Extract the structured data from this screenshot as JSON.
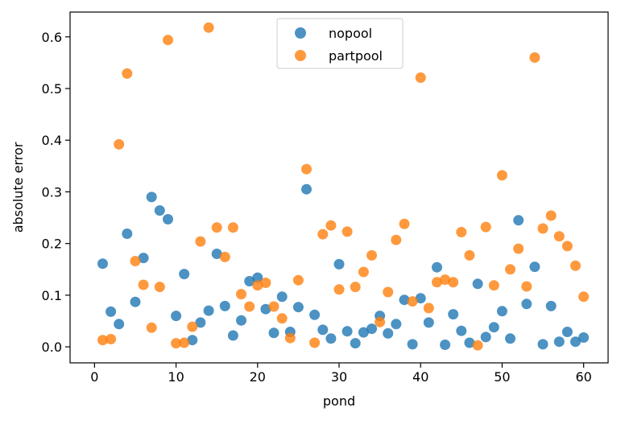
{
  "chart_data": {
    "type": "scatter",
    "xlabel": "pond",
    "ylabel": "absolute error",
    "xlim": [
      -3,
      63
    ],
    "ylim": [
      -0.031,
      0.648
    ],
    "xticks": [
      0,
      10,
      20,
      30,
      40,
      50,
      60
    ],
    "yticks": [
      0.0,
      0.1,
      0.2,
      0.3,
      0.4,
      0.5,
      0.6
    ],
    "xtick_labels": [
      "0",
      "10",
      "20",
      "30",
      "40",
      "50",
      "60"
    ],
    "ytick_labels": [
      "0.0",
      "0.1",
      "0.2",
      "0.3",
      "0.4",
      "0.5",
      "0.6"
    ],
    "grid": false,
    "legend_placement": "upper center",
    "series": [
      {
        "name": "nopool",
        "color": "#1f77b4",
        "x": [
          1,
          2,
          3,
          4,
          5,
          6,
          7,
          8,
          9,
          10,
          11,
          12,
          13,
          14,
          15,
          16,
          17,
          18,
          19,
          20,
          21,
          22,
          23,
          24,
          25,
          26,
          27,
          28,
          29,
          30,
          31,
          32,
          33,
          34,
          35,
          36,
          37,
          38,
          39,
          40,
          41,
          42,
          43,
          44,
          45,
          46,
          47,
          48,
          49,
          50,
          51,
          52,
          53,
          54,
          55,
          56,
          57,
          58,
          59,
          60
        ],
        "y": [
          0.161,
          0.068,
          0.044,
          0.219,
          0.087,
          0.172,
          0.29,
          0.264,
          0.247,
          0.06,
          0.141,
          0.013,
          0.047,
          0.07,
          0.18,
          0.079,
          0.022,
          0.051,
          0.127,
          0.134,
          0.073,
          0.027,
          0.097,
          0.029,
          0.077,
          0.305,
          0.062,
          0.033,
          0.016,
          0.16,
          0.03,
          0.007,
          0.028,
          0.035,
          0.06,
          0.026,
          0.044,
          0.091,
          0.005,
          0.094,
          0.047,
          0.154,
          0.004,
          0.063,
          0.031,
          0.008,
          0.122,
          0.019,
          0.038,
          0.069,
          0.016,
          0.245,
          0.083,
          0.155,
          0.005,
          0.079,
          0.01,
          0.029,
          0.01,
          0.018
        ]
      },
      {
        "name": "partpool",
        "color": "#ff7f0e",
        "x": [
          1,
          2,
          3,
          4,
          5,
          6,
          7,
          8,
          9,
          10,
          11,
          12,
          13,
          14,
          15,
          16,
          17,
          18,
          19,
          20,
          21,
          22,
          23,
          24,
          25,
          26,
          27,
          28,
          29,
          30,
          31,
          32,
          33,
          34,
          35,
          36,
          37,
          38,
          39,
          40,
          41,
          42,
          43,
          44,
          45,
          46,
          47,
          48,
          49,
          50,
          51,
          52,
          53,
          54,
          55,
          56,
          57,
          58,
          59,
          60
        ],
        "y": [
          0.013,
          0.015,
          0.392,
          0.529,
          0.166,
          0.12,
          0.037,
          0.116,
          0.594,
          0.007,
          0.008,
          0.039,
          0.204,
          0.618,
          0.231,
          0.174,
          0.231,
          0.102,
          0.078,
          0.119,
          0.124,
          0.078,
          0.055,
          0.017,
          0.129,
          0.344,
          0.008,
          0.218,
          0.235,
          0.111,
          0.223,
          0.116,
          0.145,
          0.177,
          0.048,
          0.106,
          0.207,
          0.238,
          0.088,
          0.521,
          0.075,
          0.125,
          0.13,
          0.125,
          0.222,
          0.177,
          0.003,
          0.232,
          0.119,
          0.332,
          0.15,
          0.19,
          0.117,
          0.56,
          0.229,
          0.254,
          0.214,
          0.195,
          0.157,
          0.097
        ]
      }
    ]
  }
}
